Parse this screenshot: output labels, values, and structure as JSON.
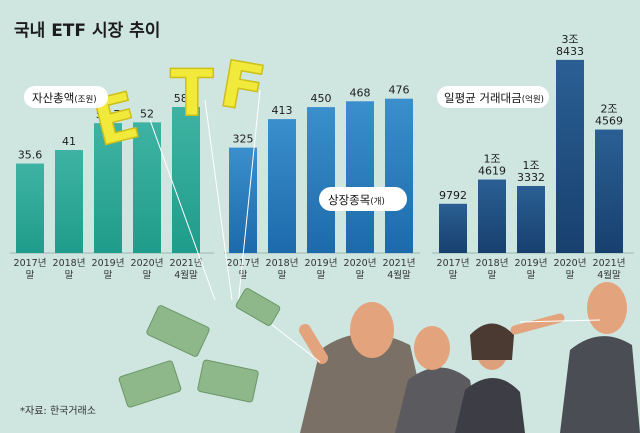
{
  "title": "국내 ETF 시장 추이",
  "source": "*자료: 한국거래소",
  "deco": {
    "e": "E",
    "t": "T",
    "f": "F"
  },
  "colors": {
    "aum": "#1fa08e",
    "listings": "#1f76bb",
    "trading": "#1d4a7e",
    "background": "#cfe6e0"
  },
  "panels": [
    {
      "label": "자산총액",
      "unit": "(조원)"
    },
    {
      "label": "상장종목",
      "unit": "(개)"
    },
    {
      "label": "일평균 거래대금",
      "unit": "(억원)"
    }
  ],
  "chart_data": [
    {
      "type": "bar",
      "title": "자산총액(조원)",
      "categories": [
        [
          "2017년",
          "말"
        ],
        [
          "2018년",
          "말"
        ],
        [
          "2019년",
          "말"
        ],
        [
          "2020년",
          "말"
        ],
        [
          "2021년",
          "4월말"
        ]
      ],
      "values": [
        35.6,
        41,
        51.7,
        52,
        58.1
      ],
      "value_labels": [
        [
          "35.6"
        ],
        [
          "41"
        ],
        [
          "51.7"
        ],
        [
          "52"
        ],
        [
          "58.1"
        ]
      ],
      "ylim": [
        0,
        80
      ]
    },
    {
      "type": "bar",
      "title": "상장종목(개)",
      "categories": [
        [
          "2017년",
          "말"
        ],
        [
          "2018년",
          "말"
        ],
        [
          "2019년",
          "말"
        ],
        [
          "2020년",
          "말"
        ],
        [
          "2021년",
          "4월말"
        ]
      ],
      "values": [
        325,
        413,
        450,
        468,
        476
      ],
      "value_labels": [
        [
          "325"
        ],
        [
          "413"
        ],
        [
          "450"
        ],
        [
          "468"
        ],
        [
          "476"
        ]
      ],
      "ylim": [
        0,
        620
      ]
    },
    {
      "type": "bar",
      "title": "일평균 거래대금(억원)",
      "categories": [
        [
          "2017년",
          "말"
        ],
        [
          "2018년",
          "말"
        ],
        [
          "2019년",
          "말"
        ],
        [
          "2020년",
          "말"
        ],
        [
          "2021년",
          "4월말"
        ]
      ],
      "values": [
        9792,
        14619,
        13332,
        38433,
        24569
      ],
      "value_labels": [
        [
          "9792"
        ],
        [
          "1조",
          "4619"
        ],
        [
          "1조",
          "3332"
        ],
        [
          "3조",
          "8433"
        ],
        [
          "2조",
          "4569"
        ]
      ],
      "ylim": [
        0,
        40000
      ]
    }
  ]
}
